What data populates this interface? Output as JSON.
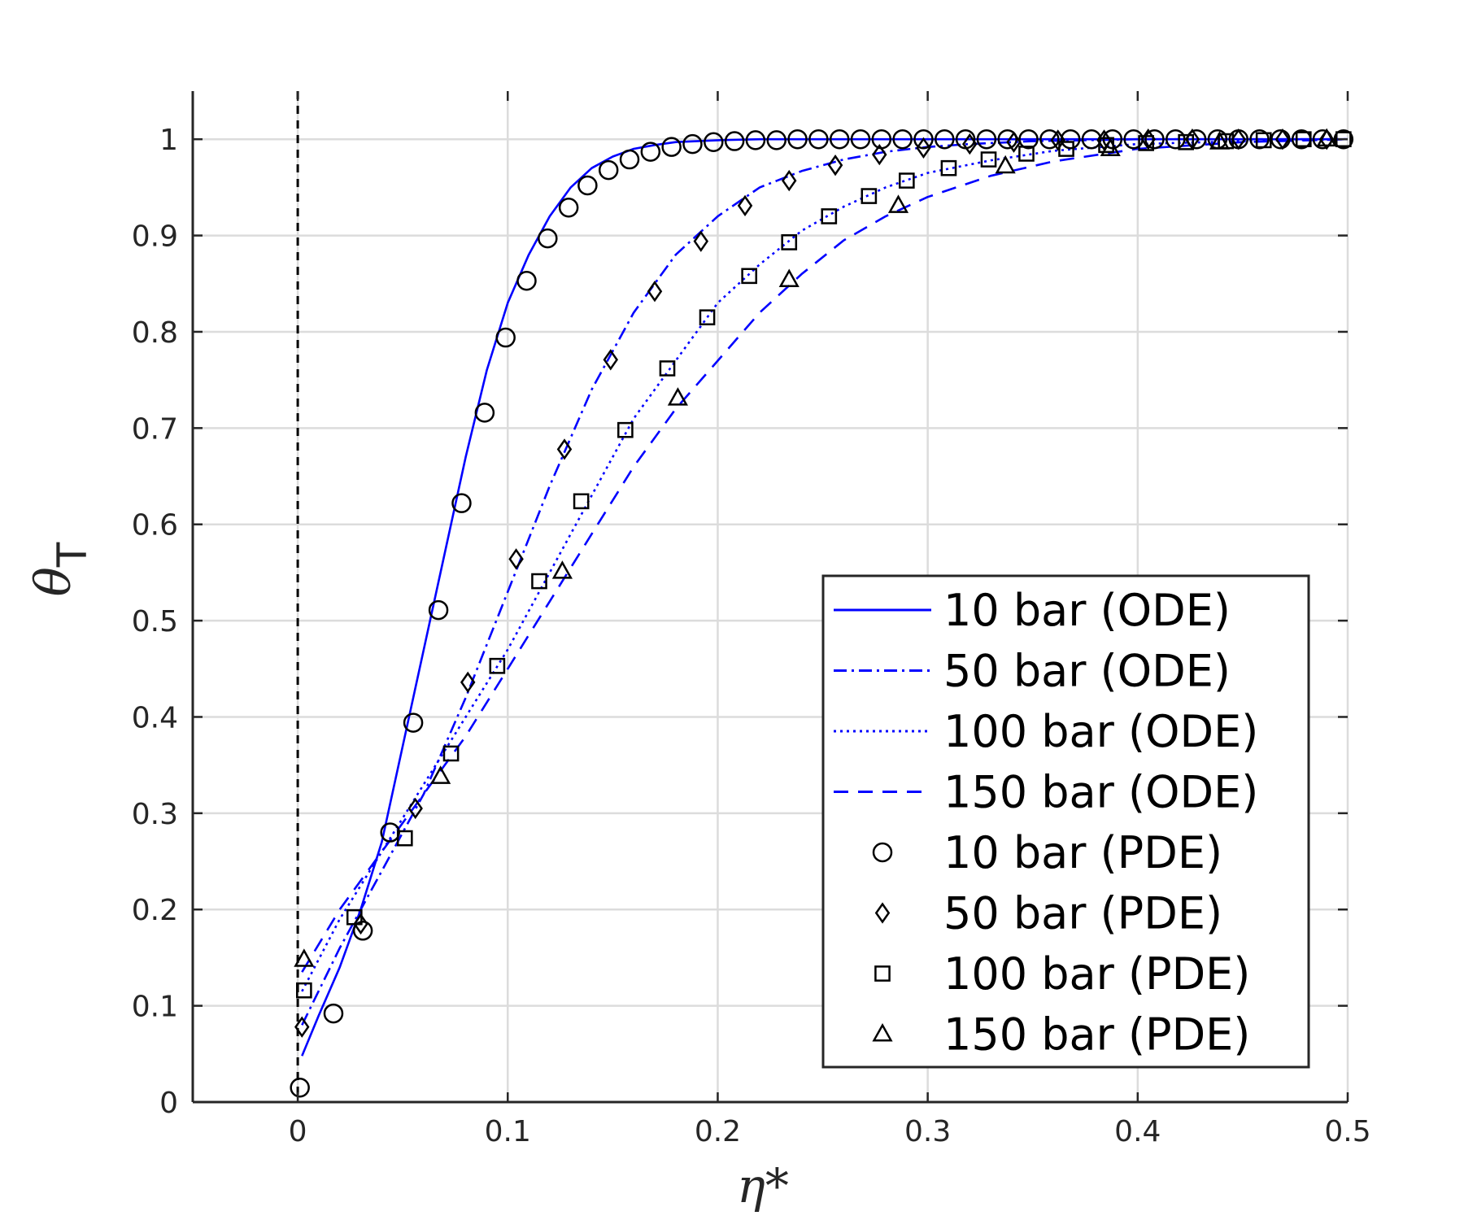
{
  "chart_data": {
    "type": "line",
    "xlabel": "η*",
    "ylabel": "θ",
    "ylabel_subscript": "T",
    "xlim": [
      -0.05,
      0.5
    ],
    "ylim": [
      0,
      1.05
    ],
    "xticks": [
      0,
      0.1,
      0.2,
      0.3,
      0.4,
      0.5
    ],
    "xtick_labels": [
      "0",
      "0.1",
      "0.2",
      "0.3",
      "0.4",
      "0.5"
    ],
    "yticks": [
      0,
      0.1,
      0.2,
      0.3,
      0.4,
      0.5,
      0.6,
      0.7,
      0.8,
      0.9,
      1
    ],
    "ytick_labels": [
      "0",
      "0.1",
      "0.2",
      "0.3",
      "0.4",
      "0.5",
      "0.6",
      "0.7",
      "0.8",
      "0.9",
      "1"
    ],
    "grid": true,
    "legend_position": "bottom-right",
    "reference_line": {
      "x": 0,
      "style": "dashed",
      "color": "#000000"
    },
    "line_color": "#0000ff",
    "marker_color": "#000000",
    "series": [
      {
        "name": "10 bar (ODE)",
        "kind": "line",
        "dash": "solid",
        "x": [
          0.002,
          0.01,
          0.02,
          0.03,
          0.04,
          0.05,
          0.06,
          0.07,
          0.08,
          0.09,
          0.1,
          0.11,
          0.12,
          0.13,
          0.14,
          0.15,
          0.16,
          0.17,
          0.18,
          0.2,
          0.22,
          0.25,
          0.3,
          0.4,
          0.5
        ],
        "y": [
          0.048,
          0.09,
          0.14,
          0.2,
          0.27,
          0.37,
          0.47,
          0.57,
          0.67,
          0.76,
          0.83,
          0.88,
          0.92,
          0.95,
          0.97,
          0.982,
          0.99,
          0.994,
          0.997,
          0.999,
          1.0,
          1.0,
          1.0,
          1.0,
          1.0
        ]
      },
      {
        "name": "50 bar (ODE)",
        "kind": "line",
        "dash": "dashdot",
        "x": [
          0.002,
          0.02,
          0.04,
          0.06,
          0.08,
          0.1,
          0.12,
          0.14,
          0.16,
          0.18,
          0.2,
          0.22,
          0.24,
          0.26,
          0.28,
          0.3,
          0.32,
          0.35,
          0.4,
          0.45,
          0.5
        ],
        "y": [
          0.08,
          0.16,
          0.24,
          0.32,
          0.42,
          0.53,
          0.64,
          0.74,
          0.82,
          0.88,
          0.92,
          0.95,
          0.967,
          0.979,
          0.987,
          0.992,
          0.995,
          0.998,
          1.0,
          1.0,
          1.0
        ]
      },
      {
        "name": "100 bar (ODE)",
        "kind": "line",
        "dash": "dotted",
        "x": [
          0.002,
          0.02,
          0.04,
          0.06,
          0.08,
          0.1,
          0.12,
          0.14,
          0.16,
          0.18,
          0.2,
          0.22,
          0.24,
          0.26,
          0.28,
          0.3,
          0.33,
          0.36,
          0.4,
          0.45,
          0.5
        ],
        "y": [
          0.115,
          0.19,
          0.26,
          0.33,
          0.4,
          0.47,
          0.55,
          0.63,
          0.71,
          0.77,
          0.83,
          0.87,
          0.905,
          0.93,
          0.95,
          0.965,
          0.978,
          0.988,
          0.995,
          0.998,
          1.0
        ]
      },
      {
        "name": "150 bar (ODE)",
        "kind": "line",
        "dash": "dashed",
        "x": [
          0.002,
          0.02,
          0.04,
          0.06,
          0.08,
          0.1,
          0.12,
          0.14,
          0.16,
          0.18,
          0.2,
          0.22,
          0.24,
          0.26,
          0.28,
          0.3,
          0.33,
          0.36,
          0.4,
          0.45,
          0.5
        ],
        "y": [
          0.135,
          0.2,
          0.26,
          0.32,
          0.38,
          0.45,
          0.52,
          0.59,
          0.66,
          0.72,
          0.77,
          0.82,
          0.86,
          0.895,
          0.92,
          0.94,
          0.962,
          0.977,
          0.99,
          0.997,
          1.0
        ]
      },
      {
        "name": "10 bar (PDE)",
        "kind": "marker",
        "marker": "circle",
        "x": [
          0.001,
          0.017,
          0.031,
          0.044,
          0.055,
          0.067,
          0.078,
          0.089,
          0.099,
          0.109,
          0.119,
          0.129,
          0.138,
          0.148,
          0.158,
          0.168,
          0.178,
          0.188,
          0.198,
          0.208,
          0.218,
          0.228,
          0.238,
          0.248,
          0.258,
          0.268,
          0.278,
          0.288,
          0.298,
          0.308,
          0.318,
          0.328,
          0.338,
          0.348,
          0.358,
          0.368,
          0.378,
          0.388,
          0.398,
          0.408,
          0.418,
          0.428,
          0.438,
          0.448,
          0.458,
          0.468,
          0.478,
          0.488,
          0.498
        ],
        "y": [
          0.015,
          0.092,
          0.178,
          0.28,
          0.394,
          0.511,
          0.622,
          0.716,
          0.794,
          0.853,
          0.897,
          0.929,
          0.952,
          0.968,
          0.979,
          0.987,
          0.992,
          0.995,
          0.997,
          0.998,
          0.999,
          0.999,
          1.0,
          1.0,
          1.0,
          1.0,
          1.0,
          1.0,
          1.0,
          1.0,
          1.0,
          1.0,
          1.0,
          1.0,
          1.0,
          1.0,
          1.0,
          1.0,
          1.0,
          1.0,
          1.0,
          1.0,
          1.0,
          1.0,
          1.0,
          1.0,
          1.0,
          1.0,
          1.0
        ]
      },
      {
        "name": "50 bar (PDE)",
        "kind": "marker",
        "marker": "diamond",
        "x": [
          0.002,
          0.03,
          0.056,
          0.081,
          0.104,
          0.127,
          0.149,
          0.17,
          0.192,
          0.213,
          0.234,
          0.256,
          0.277,
          0.298,
          0.32,
          0.341,
          0.362,
          0.384,
          0.405,
          0.426,
          0.448,
          0.469,
          0.49
        ],
        "y": [
          0.078,
          0.185,
          0.305,
          0.436,
          0.564,
          0.678,
          0.771,
          0.842,
          0.894,
          0.931,
          0.957,
          0.973,
          0.984,
          0.991,
          0.995,
          0.997,
          0.999,
          0.999,
          1.0,
          1.0,
          1.0,
          1.0,
          1.0
        ]
      },
      {
        "name": "100 bar (PDE)",
        "kind": "marker",
        "marker": "square",
        "x": [
          0.003,
          0.027,
          0.051,
          0.073,
          0.095,
          0.115,
          0.135,
          0.156,
          0.176,
          0.195,
          0.215,
          0.234,
          0.253,
          0.272,
          0.29,
          0.31,
          0.329,
          0.347,
          0.366,
          0.385,
          0.404,
          0.423,
          0.442,
          0.46,
          0.479,
          0.498
        ],
        "y": [
          0.116,
          0.192,
          0.274,
          0.362,
          0.453,
          0.541,
          0.624,
          0.698,
          0.762,
          0.815,
          0.858,
          0.893,
          0.92,
          0.941,
          0.957,
          0.97,
          0.979,
          0.985,
          0.99,
          0.994,
          0.996,
          0.997,
          0.998,
          0.999,
          1.0,
          1.0
        ]
      },
      {
        "name": "150 bar (PDE)",
        "kind": "marker",
        "marker": "triangle",
        "x": [
          0.003,
          0.068,
          0.126,
          0.181,
          0.234,
          0.286,
          0.337,
          0.387,
          0.439,
          0.49
        ],
        "y": [
          0.148,
          0.338,
          0.551,
          0.731,
          0.854,
          0.931,
          0.972,
          0.99,
          0.997,
          1.0
        ]
      }
    ]
  }
}
